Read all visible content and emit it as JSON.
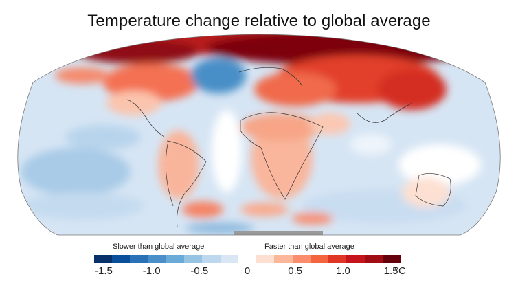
{
  "title": "Temperature change relative to global average",
  "map": {
    "projection": "Robinson",
    "description": "Global map of surface temperature change relative to global average; Arctic and northern Eurasia/North America warming faster (red), North Atlantic cold blob (dark blue), oceans mostly slower (blue), land masses generally faster (light red).",
    "regions": [
      {
        "name": "Arctic",
        "value_range": "1.0 to 1.5+"
      },
      {
        "name": "Northern Eurasia / Siberia",
        "value_range": "0.75 to 1.5"
      },
      {
        "name": "Canada / Alaska",
        "value_range": "0.5 to 1.25"
      },
      {
        "name": "North Atlantic (south of Greenland)",
        "value_range": "-1.5 to -0.75"
      },
      {
        "name": "Pacific Ocean",
        "value_range": "-0.75 to 0"
      },
      {
        "name": "South America",
        "value_range": "0.25 to 0.5"
      },
      {
        "name": "Africa",
        "value_range": "0.25 to 0.5"
      },
      {
        "name": "Australia",
        "value_range": "0 to 0.25"
      },
      {
        "name": "Southern Ocean",
        "value_range": "-0.5 to 0.75"
      },
      {
        "name": "Antarctica edge",
        "value_range": "no data"
      }
    ],
    "no_data_color": "#9a9a9a"
  },
  "legend": {
    "slower_label": "Slower than global average",
    "faster_label": "Faster than global average",
    "unit": "°C",
    "ticks": [
      {
        "label": "-1.5",
        "value": -1.5
      },
      {
        "label": "-1.0",
        "value": -1.0
      },
      {
        "label": "-0.5",
        "value": -0.5
      },
      {
        "label": "0",
        "value": 0
      },
      {
        "label": "0.5",
        "value": 0.5
      },
      {
        "label": "1.0",
        "value": 1.0
      },
      {
        "label": "1.5",
        "value": 1.5
      }
    ],
    "range": [
      -1.6,
      1.6
    ],
    "colors": [
      "#08306b",
      "#0b4f9c",
      "#2a71b8",
      "#4a8fc7",
      "#6aaad6",
      "#97c3e3",
      "#bcd7ee",
      "#d9e7f5",
      "#ffffff",
      "#fde0d2",
      "#fcb79b",
      "#fb8d6c",
      "#f4643f",
      "#e03626",
      "#c5141b",
      "#a00d15",
      "#67000d"
    ]
  }
}
